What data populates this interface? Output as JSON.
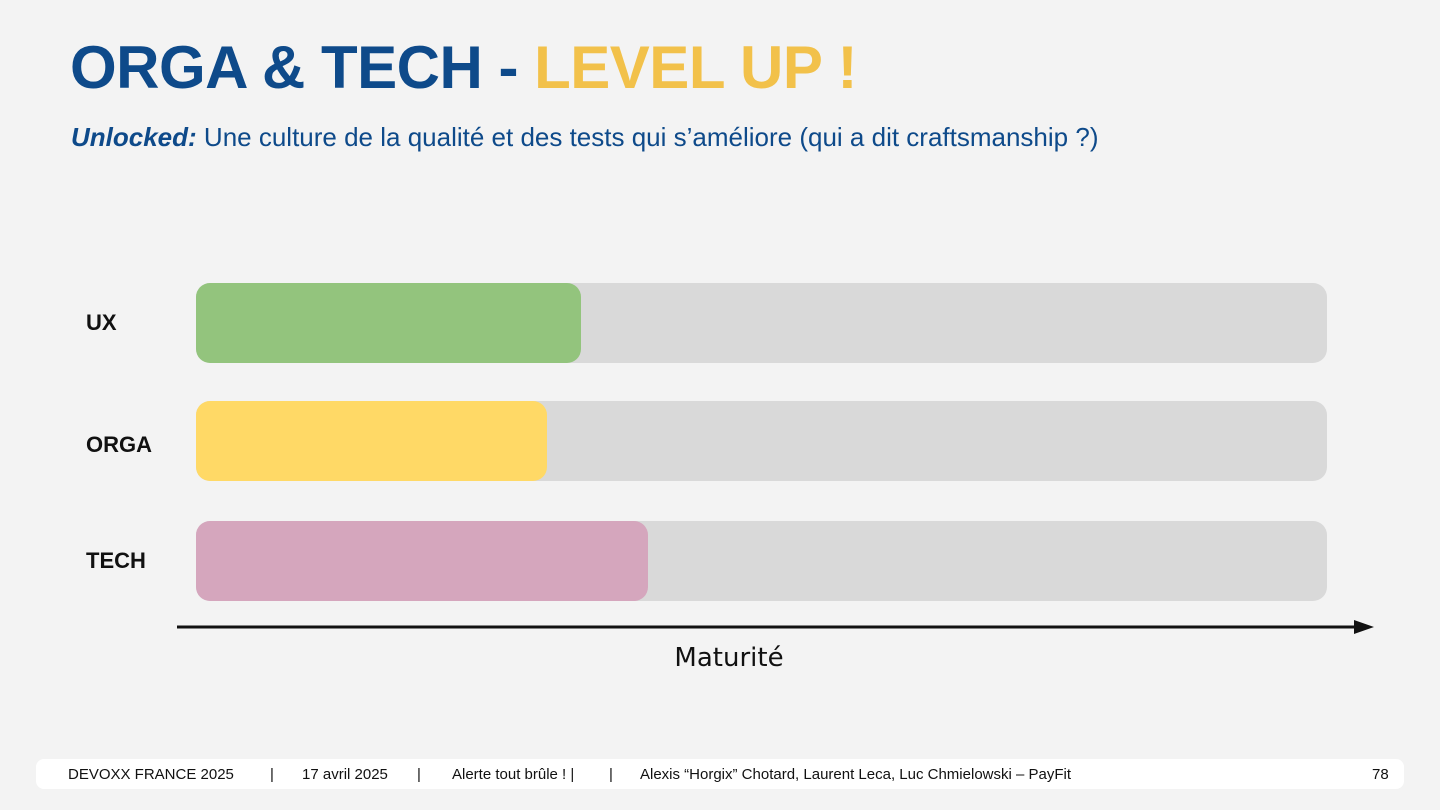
{
  "slide": {
    "title_main": "ORGA & TECH",
    "title_sep": " - ",
    "title_accent": "LEVEL UP !",
    "subtitle_label": "Unlocked:",
    "subtitle_text": " Une culture de la qualité et des tests qui s’améliore (qui a dit craftsmanship ?)"
  },
  "colors": {
    "title": "#0e4a8a",
    "accent": "#f2c14a",
    "track": "#d9d9d9",
    "ux": "#93c47d",
    "orga": "#ffd966",
    "tech": "#d5a6bd"
  },
  "chart_data": {
    "type": "bar",
    "orientation": "horizontal",
    "categories": [
      "UX",
      "ORGA",
      "TECH"
    ],
    "values": [
      34,
      31,
      40
    ],
    "value_unit": "percent of track",
    "xlabel": "Maturité",
    "xlim": [
      0,
      100
    ]
  },
  "footer": {
    "event": "DEVOXX FRANCE 2025",
    "sep1": "|",
    "date": "17 avril 2025",
    "sep2": "|",
    "talk": "Alerte tout brûle ! |",
    "sep3": "|",
    "authors": "Alexis “Horgix” Chotard, Laurent Leca, Luc Chmielowski – PayFit",
    "page": "78"
  }
}
